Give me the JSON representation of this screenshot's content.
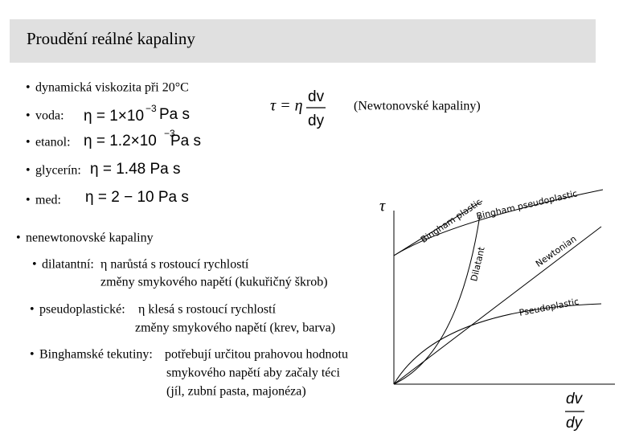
{
  "title": "Proudění reálné kapaliny",
  "viscosity": {
    "heading": "dynamická viskozita při 20°C",
    "items": [
      {
        "label": "voda:",
        "main": "η = 1×10",
        "exp": "−3",
        "unit": "Pa s"
      },
      {
        "label": "etanol:",
        "main": "η = 1.2×10",
        "exp": "−3",
        "unit": "Pa s"
      },
      {
        "label": "glycerín:",
        "main": "η = 1.48 Pa s"
      },
      {
        "label": "med:",
        "main": "η = 2 − 10 Pa s"
      }
    ]
  },
  "newton": {
    "lhs": "τ = η",
    "numerator": "dv",
    "denominator": "dy",
    "note": "(Newtonovské kapaliny)"
  },
  "non_newtonian": {
    "heading": "nenewtonovské kapaliny",
    "items": [
      {
        "label": "dilatantní:",
        "lines": [
          "η narůstá s rostoucí rychlostí",
          "změny smykového napětí  (kukuřičný škrob)"
        ]
      },
      {
        "label": "pseudoplastické:",
        "lines": [
          "η klesá s rostoucí rychlostí",
          "změny smykového napětí  (krev, barva)"
        ]
      },
      {
        "label": "Binghamské tekutiny:",
        "lines": [
          "potřebují určitou prahovou hodnotu",
          "smykového napětí aby začaly téci",
          "(jíl, zubní pasta, majonéza)"
        ]
      }
    ]
  },
  "diagram": {
    "y_label": "τ",
    "x_numerator": "dv",
    "x_denominator": "dy",
    "curves": [
      "Bingham plastic",
      "Bingham pseudoplastic",
      "Newtonian",
      "Dilatant",
      "Pseudoplastic"
    ]
  }
}
